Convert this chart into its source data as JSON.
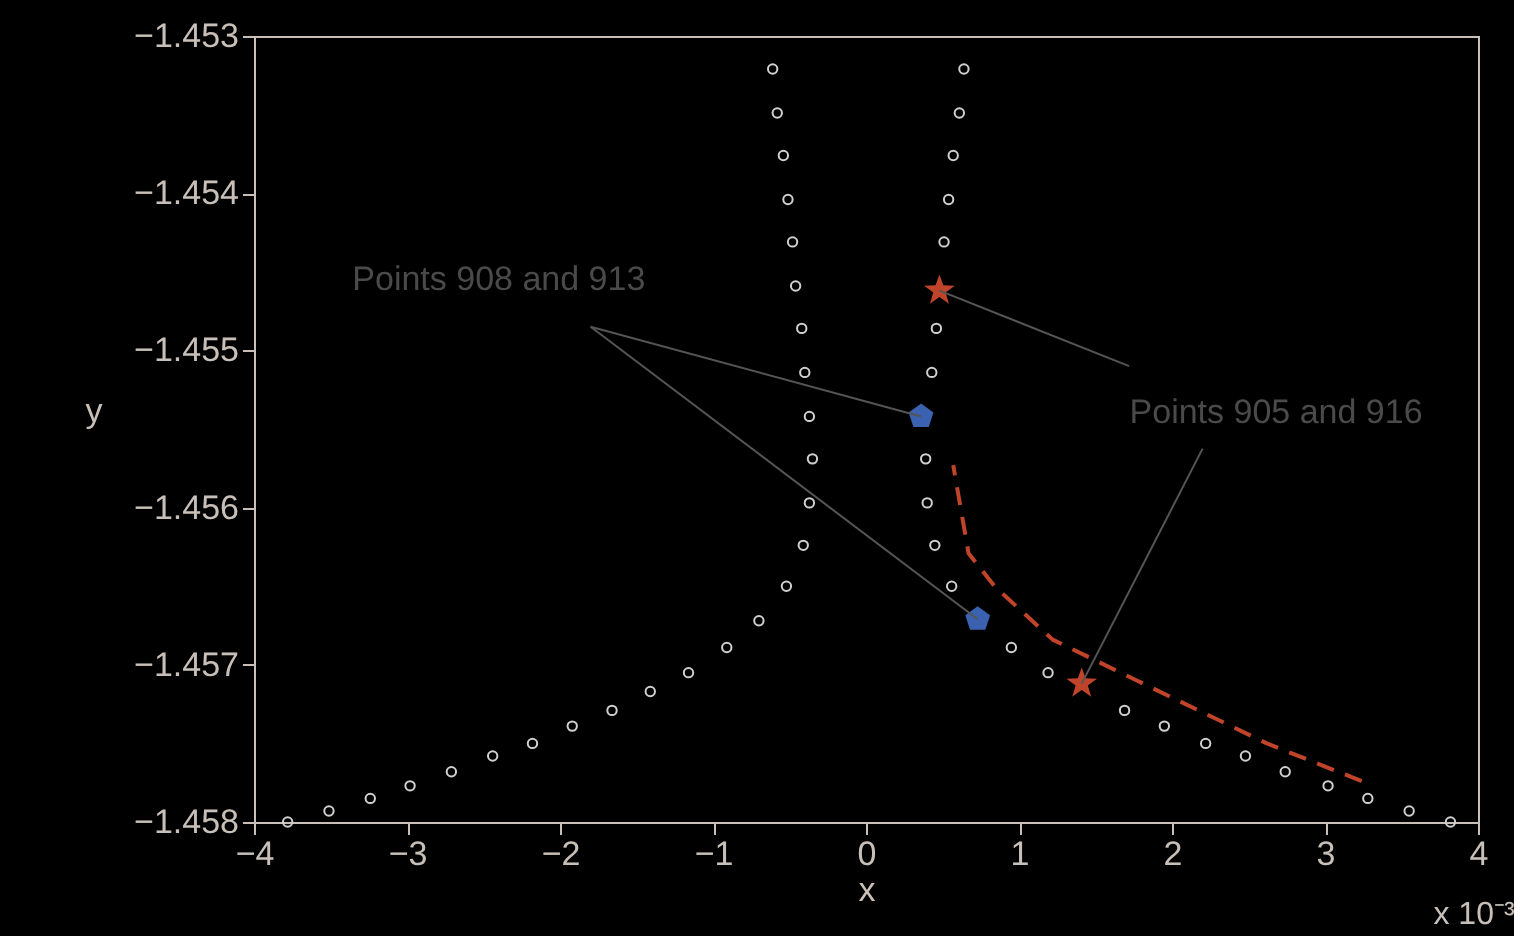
{
  "chart_data": {
    "type": "scatter",
    "xlabel": "x",
    "ylabel": "y",
    "xlim": [
      -4,
      4
    ],
    "xticks": [
      -4,
      -3,
      -2,
      -1,
      0,
      1,
      2,
      3,
      4
    ],
    "ylim": [
      -1.458,
      -1.453
    ],
    "yticks": [
      -1.458,
      -1.457,
      -1.456,
      -1.455,
      -1.454,
      -1.453
    ],
    "grid": false,
    "annotations": [
      {
        "text": "Points 908 and 913",
        "x": 0.36,
        "y": -1.45542
      },
      {
        "text": "Points 905 and 916",
        "x": 0.48,
        "y": -1.45462
      },
      "x 10⁻³"
    ],
    "series": [
      {
        "color": "#d0d0d0",
        "marker": "circle",
        "x": [
          -0.61,
          -0.58,
          -0.54,
          -0.51,
          -0.48,
          -0.46,
          -0.42,
          -0.4,
          -0.37,
          -0.35,
          -0.37,
          -0.41,
          -0.52,
          -0.7,
          -0.91,
          -1.16,
          -1.41,
          -1.66,
          -1.92,
          -2.18,
          -2.44,
          -2.71,
          -2.98,
          -3.24,
          -3.51,
          -3.78
        ],
        "values": [
          -1.45321,
          -1.45349,
          -1.45376,
          -1.45404,
          -1.45431,
          -1.45459,
          -1.45486,
          -1.45514,
          -1.45542,
          -1.45569,
          -1.45597,
          -1.45624,
          -1.4565,
          -1.45672,
          -1.45689,
          -1.45705,
          -1.45717,
          -1.45729,
          -1.45739,
          -1.4575,
          -1.45758,
          -1.45768,
          -1.45777,
          -1.45785,
          -1.45793,
          -1.458
        ]
      },
      {
        "color": "#d0d0d0",
        "marker": "circle",
        "x": [
          0.64,
          0.61,
          0.57,
          0.54,
          0.51,
          0.46,
          0.43,
          0.39,
          0.4,
          0.45,
          0.56,
          0.95,
          1.19,
          1.69,
          1.95,
          2.22,
          2.48,
          2.74,
          3.02,
          3.28,
          3.55,
          3.82
        ],
        "values": [
          -1.45321,
          -1.45349,
          -1.45376,
          -1.45404,
          -1.45431,
          -1.45486,
          -1.45514,
          -1.45569,
          -1.45597,
          -1.45624,
          -1.4565,
          -1.45689,
          -1.45705,
          -1.45729,
          -1.45739,
          -1.4575,
          -1.45758,
          -1.45768,
          -1.45777,
          -1.45785,
          -1.45793,
          -1.458
        ]
      },
      {
        "color": "#3a62b0",
        "x": [
          0.36,
          0.73
        ],
        "values": [
          -1.45542,
          -1.45671
        ]
      },
      {
        "color": "#c0442a",
        "marker": "star",
        "x": [
          0.48,
          1.41
        ],
        "values": [
          -1.45462,
          -1.45712
        ]
      },
      {
        "type": "line",
        "color": "#c0442a",
        "line_style": "dashed",
        "marker": "none",
        "x": [
          3.24,
          2.62,
          1.77,
          1.22,
          0.84,
          0.67,
          0.57
        ],
        "values": [
          -1.45774,
          -1.4575,
          -1.4571,
          -1.45684,
          -1.4565,
          -1.45629,
          -1.45573
        ]
      }
    ]
  }
}
